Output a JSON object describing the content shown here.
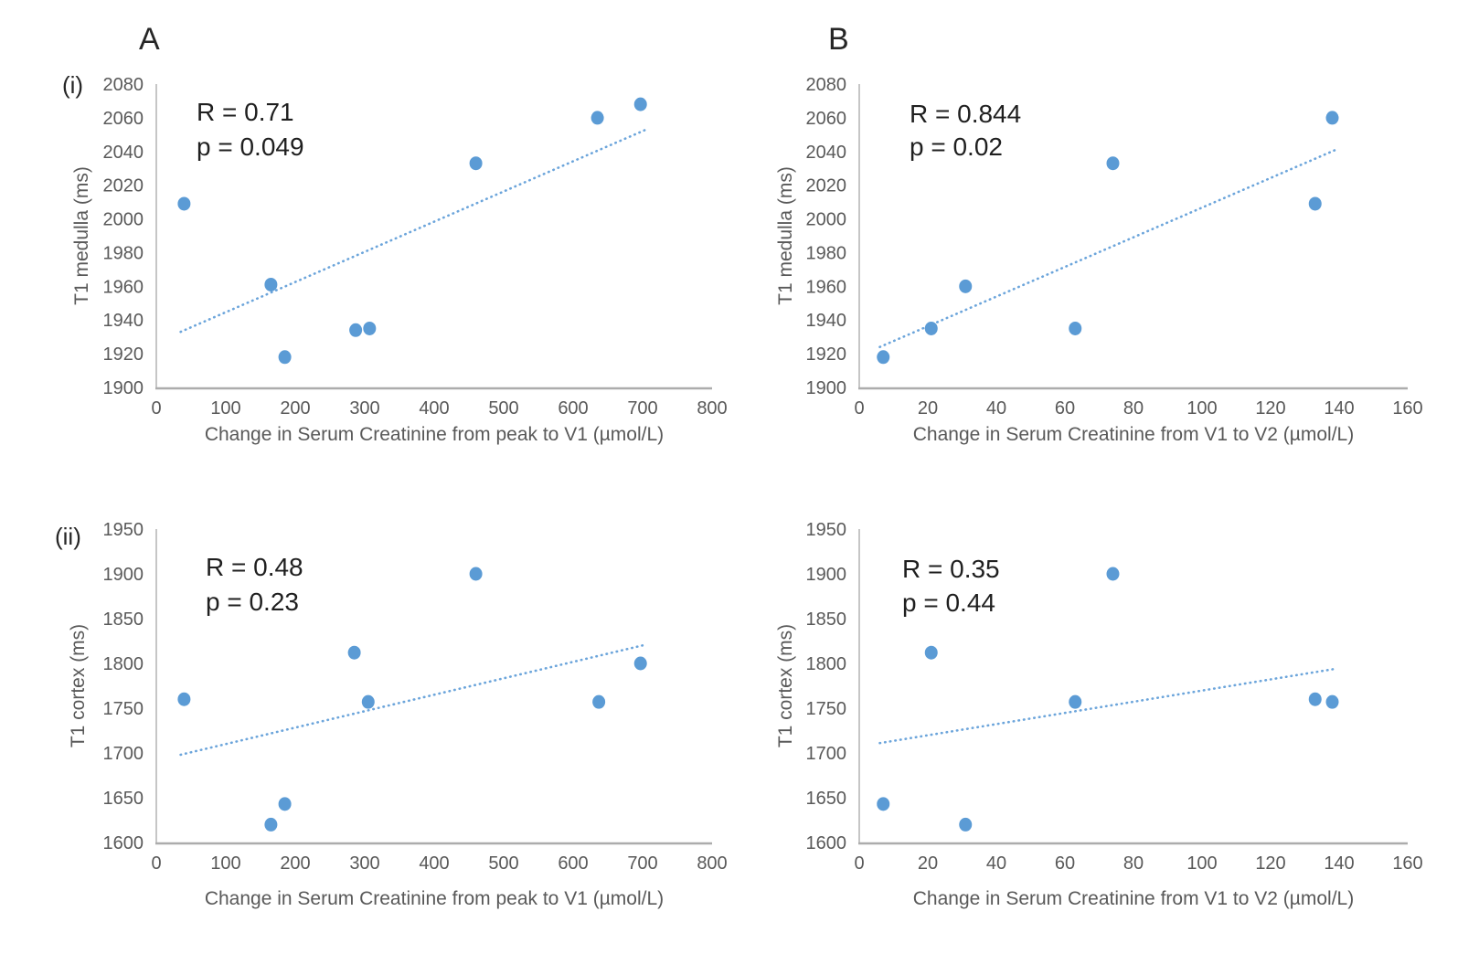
{
  "figure": {
    "group_labels": {
      "a": "A",
      "b": "B"
    },
    "row_labels": {
      "i": "(i)",
      "ii": "(ii)"
    }
  },
  "colors": {
    "point": "#5B9BD5",
    "trendline": "#6CA5DB",
    "axis_line_left": "#C6C6C6",
    "axis_line_bottom": "#ACACAC",
    "tick_text": "#595959",
    "axis_title_text": "#595959",
    "annotation_text": "#1F1F1F"
  },
  "chart_data": [
    {
      "id": "t1-medulla-vs-peak-to-v1",
      "type": "scatter",
      "grid": false,
      "xlabel": "Change in Serum Creatinine from peak to V1 (µmol/L)",
      "ylabel": "T1 medulla (ms)",
      "xlim": [
        0,
        800
      ],
      "ylim": [
        1900,
        2080
      ],
      "xticks": [
        0,
        100,
        200,
        300,
        400,
        500,
        600,
        700,
        800
      ],
      "yticks": [
        1900,
        1920,
        1940,
        1960,
        1980,
        2000,
        2020,
        2040,
        2060,
        2080
      ],
      "annotation": {
        "r_label": "R = 0.71",
        "p_label": "p = 0.049"
      },
      "points": [
        [
          40,
          2009
        ],
        [
          165,
          1961
        ],
        [
          185,
          1918
        ],
        [
          287,
          1934
        ],
        [
          307,
          1935
        ],
        [
          460,
          2033
        ],
        [
          635,
          2060
        ],
        [
          697,
          2068
        ]
      ],
      "trendline": {
        "style": "dotted",
        "x_start": 35,
        "y_start": 1933,
        "x_end": 705,
        "y_end": 2053
      }
    },
    {
      "id": "t1-medulla-vs-v1-to-v2",
      "type": "scatter",
      "grid": false,
      "xlabel": "Change in Serum Creatinine from V1 to V2 (µmol/L)",
      "ylabel": "T1 medulla (ms)",
      "xlim": [
        0,
        160
      ],
      "ylim": [
        1900,
        2080
      ],
      "xticks": [
        0,
        20,
        40,
        60,
        80,
        100,
        120,
        140,
        160
      ],
      "yticks": [
        1900,
        1920,
        1940,
        1960,
        1980,
        2000,
        2020,
        2040,
        2060,
        2080
      ],
      "annotation": {
        "r_label": "R = 0.844",
        "p_label": "p = 0.02"
      },
      "points": [
        [
          7,
          1918
        ],
        [
          21,
          1935
        ],
        [
          31,
          1960
        ],
        [
          63,
          1935
        ],
        [
          74,
          2033
        ],
        [
          133,
          2009
        ],
        [
          138,
          2060
        ]
      ],
      "trendline": {
        "style": "dotted",
        "x_start": 6,
        "y_start": 1924,
        "x_end": 139,
        "y_end": 2041
      }
    },
    {
      "id": "t1-cortex-vs-peak-to-v1",
      "type": "scatter",
      "grid": false,
      "xlabel": "Change in Serum Creatinine from peak to V1 (µmol/L)",
      "ylabel": "T1 cortex (ms)",
      "xlim": [
        0,
        800
      ],
      "ylim": [
        1600,
        1950
      ],
      "xticks": [
        0,
        100,
        200,
        300,
        400,
        500,
        600,
        700,
        800
      ],
      "yticks": [
        1600,
        1650,
        1700,
        1750,
        1800,
        1850,
        1900,
        1950
      ],
      "annotation": {
        "r_label": "R = 0.48",
        "p_label": "p = 0.23"
      },
      "points": [
        [
          40,
          1760
        ],
        [
          165,
          1620
        ],
        [
          185,
          1643
        ],
        [
          285,
          1812
        ],
        [
          305,
          1757
        ],
        [
          460,
          1900
        ],
        [
          637,
          1757
        ],
        [
          697,
          1800
        ]
      ],
      "trendline": {
        "style": "dotted",
        "x_start": 35,
        "y_start": 1698,
        "x_end": 705,
        "y_end": 1821
      }
    },
    {
      "id": "t1-cortex-vs-v1-to-v2",
      "type": "scatter",
      "grid": false,
      "xlabel": "Change in Serum Creatinine from V1 to V2 (µmol/L)",
      "ylabel": "T1 cortex (ms)",
      "xlim": [
        0,
        160
      ],
      "ylim": [
        1600,
        1950
      ],
      "xticks": [
        0,
        20,
        40,
        60,
        80,
        100,
        120,
        140,
        160
      ],
      "yticks": [
        1600,
        1650,
        1700,
        1750,
        1800,
        1850,
        1900,
        1950
      ],
      "annotation": {
        "r_label": "R = 0.35",
        "p_label": "p = 0.44"
      },
      "points": [
        [
          7,
          1643
        ],
        [
          21,
          1812
        ],
        [
          31,
          1620
        ],
        [
          63,
          1757
        ],
        [
          74,
          1900
        ],
        [
          133,
          1760
        ],
        [
          138,
          1757
        ]
      ],
      "trendline": {
        "style": "dotted",
        "x_start": 6,
        "y_start": 1711,
        "x_end": 139,
        "y_end": 1794
      }
    }
  ]
}
